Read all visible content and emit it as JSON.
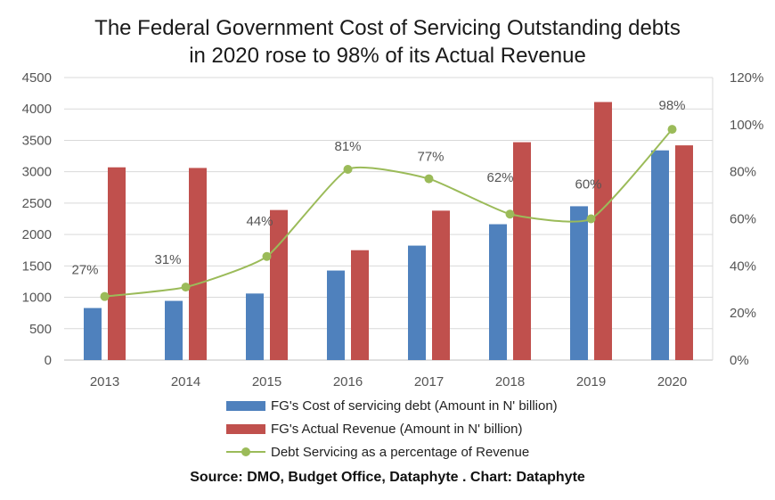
{
  "title_line1": "The Federal Government Cost of Servicing Outstanding debts",
  "title_line2": "in 2020 rose to 98% of its Actual Revenue",
  "source": "Source: DMO, Budget Office, Dataphyte . Chart: Dataphyte",
  "chart_data": {
    "type": "bar",
    "categories": [
      "2013",
      "2014",
      "2015",
      "2016",
      "2017",
      "2018",
      "2019",
      "2020"
    ],
    "series": [
      {
        "name": "FG's Cost of servicing debt (Amount in N' billion)",
        "type": "bar",
        "axis": "left",
        "color": "#4f81bd",
        "values": [
          829,
          943,
          1060,
          1426,
          1823,
          2164,
          2450,
          3340
        ]
      },
      {
        "name": "FG's Actual Revenue (Amount in N' billion)",
        "type": "bar",
        "axis": "left",
        "color": "#c0504d",
        "values": [
          3070,
          3060,
          2390,
          1750,
          2380,
          3470,
          4110,
          3420
        ]
      },
      {
        "name": "Debt Servicing as a percentage of Revenue",
        "type": "line",
        "axis": "right",
        "color": "#9bbb59",
        "values": [
          27,
          31,
          44,
          81,
          77,
          62,
          60,
          98
        ],
        "labels": [
          "27%",
          "31%",
          "44%",
          "81%",
          "77%",
          "62%",
          "60%",
          "98%"
        ]
      }
    ],
    "y_left": {
      "min": 0,
      "max": 4500,
      "ticks": [
        "0",
        "500",
        "1000",
        "1500",
        "2000",
        "2500",
        "3000",
        "3500",
        "4000",
        "4500"
      ]
    },
    "y_right": {
      "min": 0,
      "max": 120,
      "ticks": [
        "0%",
        "20%",
        "40%",
        "60%",
        "80%",
        "100%",
        "120%"
      ]
    },
    "grid": true,
    "legend_position": "bottom"
  }
}
